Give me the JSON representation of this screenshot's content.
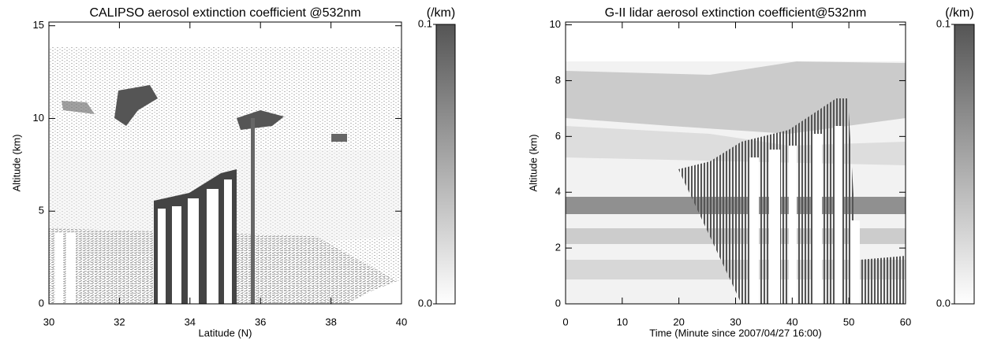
{
  "chart_data": [
    {
      "type": "heatmap",
      "title": "CALIPSO aerosol extinction coefficient @532nm",
      "x_label": "Latitude (N)",
      "y_label": "Altitude (km)",
      "xlim": [
        30,
        40
      ],
      "xticks": [
        30,
        32,
        34,
        36,
        38,
        40
      ],
      "ylim": [
        0,
        15.2
      ],
      "yticks": [
        0,
        5,
        10,
        15
      ],
      "colorbar": {
        "label": "(/km)",
        "lim": [
          0,
          0.1
        ],
        "ticks": [
          {
            "value": 0,
            "label": "0.0"
          },
          {
            "value": 0.1,
            "label": "0.1"
          }
        ],
        "colors": [
          "#ffffff",
          "#555555"
        ]
      }
    },
    {
      "type": "heatmap",
      "title": "G-II lidar aerosol extinction coefficient@532nm",
      "x_label": "Time (Minute since 2007/04/27 16:00)",
      "y_label": "Altitude (km)",
      "xlim": [
        0,
        60
      ],
      "xticks": [
        0,
        10,
        20,
        30,
        40,
        50,
        60
      ],
      "ylim": [
        0,
        10.1
      ],
      "yticks": [
        0,
        2,
        4,
        6,
        8,
        10
      ],
      "colorbar": {
        "label": "(/km)",
        "lim": [
          0,
          0.1
        ],
        "ticks": [
          {
            "value": 0,
            "label": "0.0"
          },
          {
            "value": 0.1,
            "label": "0.1"
          }
        ],
        "colors": [
          "#ffffff",
          "#555555"
        ]
      }
    }
  ]
}
